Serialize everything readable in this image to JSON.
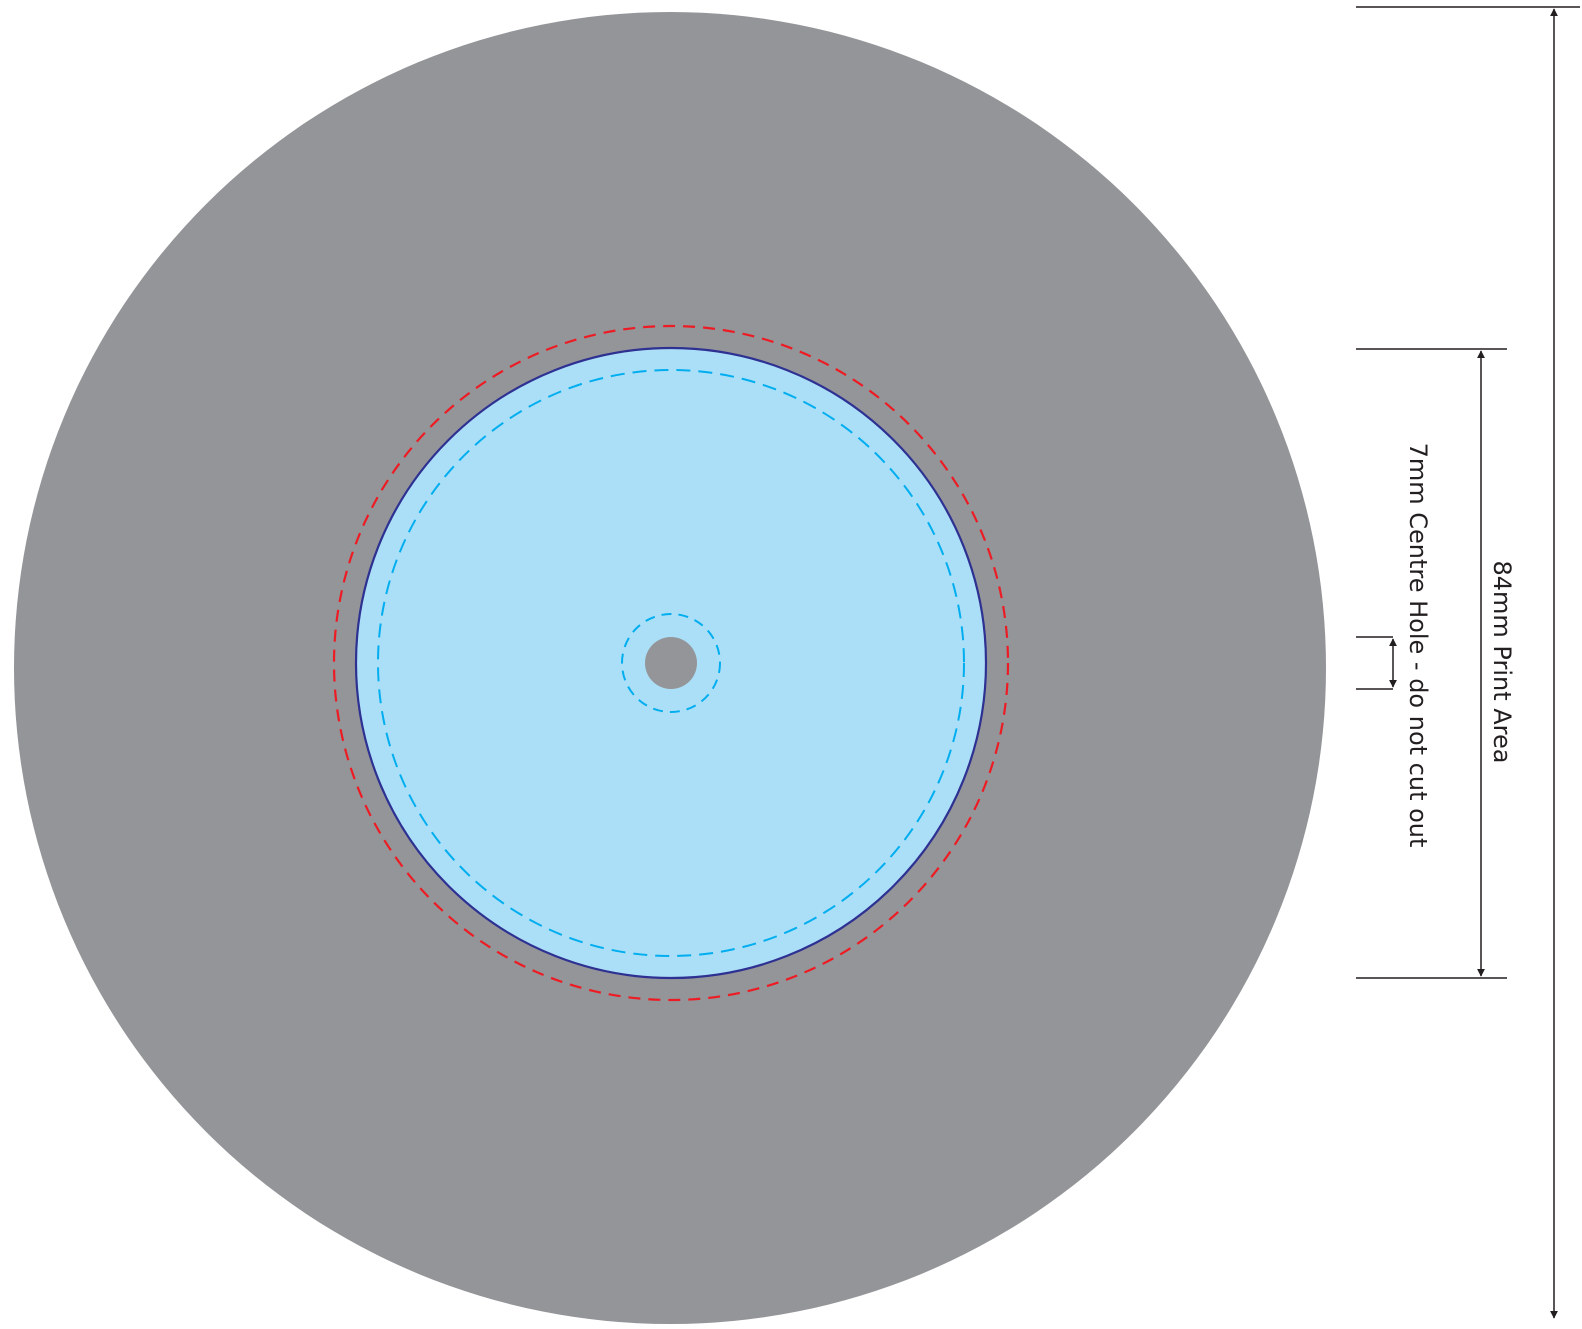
{
  "labels": {
    "print_area": "84mm Print Area",
    "centre_hole": "7mm Centre Hole - do not cut out"
  },
  "colors": {
    "record": "#939598",
    "label_fill": "#abdff8",
    "label_outline": "#2e3192",
    "bleed_line": "#ed1c24",
    "safe_line": "#00aeef",
    "dimension_line": "#231f20",
    "background": "#ffffff"
  }
}
